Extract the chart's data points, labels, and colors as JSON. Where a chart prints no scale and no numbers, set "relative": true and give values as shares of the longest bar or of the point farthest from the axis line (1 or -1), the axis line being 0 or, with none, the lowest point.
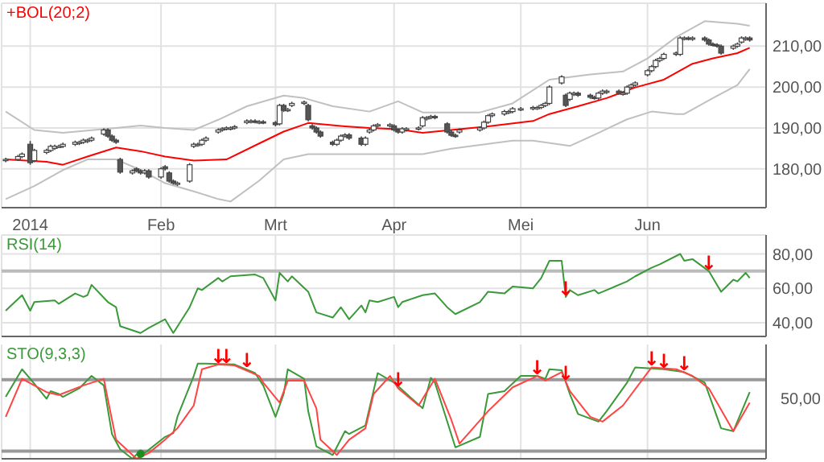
{
  "chart_data": [
    {
      "type": "candlestick",
      "legend": "top left",
      "grid": true,
      "xlim": [
        "2013-12-26",
        "2014-07-01"
      ],
      "xticks": [
        {
          "value": "2014-01-02",
          "label": "2014"
        },
        {
          "value": "2014-02-03",
          "label": "Feb"
        },
        {
          "value": "2014-03-03",
          "label": "Mrt"
        },
        {
          "value": "2014-04-01",
          "label": "Apr"
        },
        {
          "value": "2014-05-02",
          "label": "Mei"
        },
        {
          "value": "2014-06-02",
          "label": "Jun"
        }
      ],
      "ylim": [
        170.5,
        220.5
      ],
      "yticks": [
        {
          "value": 180,
          "label": "180,00"
        },
        {
          "value": 190,
          "label": "190,00"
        },
        {
          "value": 200,
          "label": "200,00"
        },
        {
          "value": 210,
          "label": "210,00"
        }
      ],
      "x": [
        "2013-12-27",
        "2013-12-30",
        "2013-12-31",
        "2014-01-02",
        "2014-01-03",
        "2014-01-06",
        "2014-01-07",
        "2014-01-08",
        "2014-01-09",
        "2014-01-10",
        "2014-01-13",
        "2014-01-14",
        "2014-01-15",
        "2014-01-16",
        "2014-01-17",
        "2014-01-20",
        "2014-01-21",
        "2014-01-22",
        "2014-01-23",
        "2014-01-24",
        "2014-01-27",
        "2014-01-28",
        "2014-01-29",
        "2014-01-30",
        "2014-01-31",
        "2014-02-03",
        "2014-02-04",
        "2014-02-05",
        "2014-02-06",
        "2014-02-07",
        "2014-02-10",
        "2014-02-11",
        "2014-02-12",
        "2014-02-13",
        "2014-02-14",
        "2014-02-17",
        "2014-02-18",
        "2014-02-19",
        "2014-02-20",
        "2014-02-21",
        "2014-02-24",
        "2014-02-25",
        "2014-02-26",
        "2014-02-27",
        "2014-02-28",
        "2014-03-03",
        "2014-03-04",
        "2014-03-05",
        "2014-03-06",
        "2014-03-07",
        "2014-03-10",
        "2014-03-11",
        "2014-03-12",
        "2014-03-13",
        "2014-03-14",
        "2014-03-17",
        "2014-03-18",
        "2014-03-19",
        "2014-03-20",
        "2014-03-21",
        "2014-03-24",
        "2014-03-25",
        "2014-03-26",
        "2014-03-27",
        "2014-03-28",
        "2014-03-31",
        "2014-04-01",
        "2014-04-02",
        "2014-04-03",
        "2014-04-04",
        "2014-04-07",
        "2014-04-08",
        "2014-04-09",
        "2014-04-10",
        "2014-04-11",
        "2014-04-14",
        "2014-04-15",
        "2014-04-16",
        "2014-04-17",
        "2014-04-22",
        "2014-04-23",
        "2014-04-24",
        "2014-04-25",
        "2014-04-28",
        "2014-04-29",
        "2014-04-30",
        "2014-05-02",
        "2014-05-05",
        "2014-05-06",
        "2014-05-07",
        "2014-05-08",
        "2014-05-09",
        "2014-05-12",
        "2014-05-13",
        "2014-05-14",
        "2014-05-15",
        "2014-05-16",
        "2014-05-19",
        "2014-05-20",
        "2014-05-21",
        "2014-05-22",
        "2014-05-23",
        "2014-05-26",
        "2014-05-27",
        "2014-05-28",
        "2014-05-29",
        "2014-05-30",
        "2014-06-02",
        "2014-06-03",
        "2014-06-04",
        "2014-06-05",
        "2014-06-06",
        "2014-06-09",
        "2014-06-10",
        "2014-06-11",
        "2014-06-12",
        "2014-06-13",
        "2014-06-16",
        "2014-06-17",
        "2014-06-18",
        "2014-06-19",
        "2014-06-20",
        "2014-06-23",
        "2014-06-24",
        "2014-06-25",
        "2014-06-26",
        "2014-06-27"
      ],
      "ohlc": [
        [
          182,
          182.7,
          181.6,
          182.3
        ],
        [
          182.3,
          183.4,
          181.9,
          183
        ],
        [
          183,
          184,
          182.6,
          183.6
        ],
        [
          186,
          186.8,
          181,
          181.5
        ],
        [
          182,
          184.9,
          181.6,
          184.5
        ],
        [
          184,
          184.9,
          183.6,
          184.5
        ],
        [
          184.5,
          185.9,
          184.1,
          185.5
        ],
        [
          185,
          185.9,
          184.6,
          185.5
        ],
        [
          185.5,
          185.9,
          185.1,
          185.5
        ],
        [
          185.5,
          186.4,
          185.1,
          186
        ],
        [
          186,
          186.9,
          185.6,
          186.5
        ],
        [
          186.2,
          186.9,
          185.8,
          186.5
        ],
        [
          186.5,
          187.4,
          186.1,
          187
        ],
        [
          186.7,
          187.4,
          186.3,
          187
        ],
        [
          187,
          187.9,
          186.6,
          187.5
        ],
        [
          188.5,
          189.9,
          188.1,
          189.5
        ],
        [
          189.5,
          189.9,
          187.6,
          188
        ],
        [
          188,
          188.4,
          186.6,
          187
        ],
        [
          187,
          187.4,
          186.1,
          186.5
        ],
        [
          182.3,
          182.7,
          178.8,
          179.2
        ],
        [
          179,
          179.9,
          178.6,
          179.5
        ],
        [
          180,
          180.4,
          179.1,
          179.5
        ],
        [
          179.5,
          179.9,
          178.6,
          179
        ],
        [
          179,
          179.9,
          178.6,
          179.5
        ],
        [
          179.5,
          179.9,
          177.6,
          178
        ],
        [
          178,
          180.4,
          177.6,
          180
        ],
        [
          180.5,
          180.9,
          179.6,
          180
        ],
        [
          179,
          179.4,
          176.6,
          177
        ],
        [
          177,
          177.4,
          176.1,
          176.5
        ],
        [
          176.2,
          176.9,
          175.8,
          176.5
        ],
        [
          177,
          181.4,
          176.6,
          181
        ],
        [
          185.5,
          186.4,
          185.1,
          186
        ],
        [
          185.8,
          186.4,
          185.4,
          186
        ],
        [
          186,
          187.4,
          185.6,
          187
        ],
        [
          187,
          187.9,
          186.6,
          187.5
        ],
        [
          189,
          189.9,
          188.6,
          189.5
        ],
        [
          189.5,
          190.2,
          189.1,
          189.8
        ],
        [
          189.8,
          190.4,
          189.4,
          190
        ],
        [
          189.8,
          190.4,
          189.4,
          190
        ],
        [
          190,
          190.7,
          189.6,
          190.3
        ],
        [
          191.3,
          192.1,
          190.9,
          191.7
        ],
        [
          191.5,
          192.1,
          191.1,
          191.7
        ],
        [
          191.7,
          192.1,
          191.1,
          191.5
        ],
        [
          191.3,
          191.9,
          190.9,
          191.5
        ],
        [
          191.5,
          191.9,
          190.9,
          191.3
        ],
        [
          191.3,
          191.7,
          190.4,
          190.8
        ],
        [
          191,
          195.9,
          190.6,
          195.5
        ],
        [
          195.5,
          195.9,
          193.9,
          194.3
        ],
        [
          194.3,
          194.9,
          193.9,
          194.5
        ],
        [
          195.5,
          196.4,
          195.1,
          196
        ],
        [
          196,
          196.7,
          195.6,
          196.3
        ],
        [
          195.5,
          195.9,
          191.6,
          192
        ],
        [
          190.5,
          190.9,
          189.6,
          190
        ],
        [
          190,
          190.4,
          188.6,
          189
        ],
        [
          189,
          189.4,
          187.6,
          188
        ],
        [
          186.5,
          186.9,
          185.6,
          186
        ],
        [
          186,
          187.4,
          185.6,
          187
        ],
        [
          187,
          188.4,
          186.6,
          188
        ],
        [
          188,
          188.7,
          187.6,
          188.3
        ],
        [
          188.3,
          188.7,
          187.1,
          187.5
        ],
        [
          187.5,
          187.9,
          185.6,
          186
        ],
        [
          186,
          187.9,
          185.6,
          187.5
        ],
        [
          189,
          189.9,
          188.6,
          189.5
        ],
        [
          189.5,
          190.9,
          189.1,
          190.5
        ],
        [
          190.5,
          191.2,
          190.1,
          190.8
        ],
        [
          190.5,
          191.2,
          190.1,
          190.8
        ],
        [
          190.5,
          190.9,
          189.1,
          189.5
        ],
        [
          189.5,
          189.9,
          188.6,
          189
        ],
        [
          189,
          190.2,
          188.6,
          189.8
        ],
        [
          189.5,
          190.2,
          189.1,
          189.8
        ],
        [
          189.8,
          190.4,
          189.4,
          190
        ],
        [
          190.5,
          192.9,
          190.1,
          192.5
        ],
        [
          192.2,
          192.9,
          191.8,
          192.5
        ],
        [
          192.5,
          193.2,
          192.1,
          192.8
        ],
        [
          192.8,
          193.2,
          192.1,
          192.5
        ],
        [
          191,
          191.4,
          188.6,
          189
        ],
        [
          189,
          189.4,
          187.8,
          188.2
        ],
        [
          188.2,
          188.6,
          187.6,
          188
        ],
        [
          189,
          189.9,
          188.6,
          189.5
        ],
        [
          189.5,
          190.4,
          189.1,
          190
        ],
        [
          190,
          191.8,
          189.6,
          191.4
        ],
        [
          191.4,
          193.4,
          191,
          193
        ],
        [
          193,
          193.8,
          192.6,
          193.4
        ],
        [
          193.4,
          194.4,
          193,
          194
        ],
        [
          193.8,
          194.4,
          193.4,
          194
        ],
        [
          194,
          195.1,
          193.6,
          194.7
        ],
        [
          194.5,
          195.1,
          194.1,
          194.7
        ],
        [
          194.7,
          195.4,
          194.3,
          195
        ],
        [
          194.8,
          195.4,
          194.4,
          195
        ],
        [
          195,
          195.9,
          194.6,
          195.5
        ],
        [
          195.5,
          196.4,
          195.1,
          196
        ],
        [
          196,
          200.4,
          195.6,
          200
        ],
        [
          201,
          202.9,
          200.6,
          202.5
        ],
        [
          198,
          198.4,
          195.1,
          195.5
        ],
        [
          197,
          198.9,
          196.6,
          198.5
        ],
        [
          198.2,
          198.9,
          197.8,
          198.5
        ],
        [
          198.5,
          198.9,
          197.6,
          198
        ],
        [
          198,
          198.4,
          197.1,
          197.5
        ],
        [
          197.5,
          197.9,
          196.9,
          197.3
        ],
        [
          197.3,
          198.9,
          196.9,
          198.5
        ],
        [
          198.5,
          199.4,
          198.1,
          199
        ],
        [
          198.7,
          199.4,
          198.3,
          199
        ],
        [
          199,
          199.4,
          198.1,
          198.5
        ],
        [
          198.3,
          198.9,
          197.9,
          198.5
        ],
        [
          198.5,
          200.4,
          198.1,
          200
        ],
        [
          200,
          200.9,
          199.6,
          200.5
        ],
        [
          200.5,
          201.4,
          200.1,
          201
        ],
        [
          203,
          204.4,
          202.6,
          204
        ],
        [
          204,
          205.4,
          203.6,
          205
        ],
        [
          205,
          206.9,
          204.6,
          206.5
        ],
        [
          206.5,
          207.4,
          206.1,
          207
        ],
        [
          207,
          208.4,
          206.6,
          208
        ],
        [
          208,
          208.7,
          207.6,
          208.3
        ],
        [
          208,
          212.4,
          207.6,
          212
        ],
        [
          211.8,
          212.4,
          211.4,
          212
        ],
        [
          212,
          212.4,
          211.4,
          211.8
        ],
        [
          211.7,
          212.4,
          211.3,
          212
        ],
        [
          212,
          212.4,
          211.1,
          211.5
        ],
        [
          211.5,
          211.9,
          210.1,
          210.5
        ],
        [
          210.5,
          210.9,
          209.9,
          210.3
        ],
        [
          210.3,
          210.7,
          209.6,
          210
        ],
        [
          210,
          210.4,
          207.9,
          208.3
        ],
        [
          209.5,
          210.4,
          209.1,
          210
        ],
        [
          210,
          210.9,
          209.6,
          210.5
        ],
        [
          211,
          212.4,
          210.6,
          212
        ],
        [
          211.7,
          212.4,
          211.3,
          212
        ],
        [
          212,
          212.4,
          211.1,
          211.5
        ]
      ],
      "series": [
        {
          "type": "line",
          "name": "+BOL(20;2)",
          "color": "#ff0000",
          "x": [
            "2013-12-27",
            "2014-01-06",
            "2014-01-10",
            "2014-01-16",
            "2014-01-23",
            "2014-01-29",
            "2014-02-04",
            "2014-02-11",
            "2014-02-19",
            "2014-02-27",
            "2014-03-05",
            "2014-03-11",
            "2014-03-20",
            "2014-03-26",
            "2014-04-02",
            "2014-04-08",
            "2014-04-15",
            "2014-04-24",
            "2014-05-05",
            "2014-05-09",
            "2014-05-16",
            "2014-05-23",
            "2014-05-30",
            "2014-06-06",
            "2014-06-13",
            "2014-06-18",
            "2014-06-24",
            "2014-06-27"
          ],
          "values": [
            182.3,
            181.7,
            181,
            183,
            185.2,
            184.3,
            183,
            182,
            182.3,
            186.2,
            189.1,
            191.2,
            190.4,
            190,
            189.7,
            188.8,
            189.5,
            190.4,
            191.7,
            193.4,
            195.3,
            197.3,
            199.9,
            201.8,
            205.7,
            207,
            208.3,
            209.6
          ]
        },
        {
          "type": "line",
          "color": "#c0c0c0",
          "x": [
            "2013-12-27",
            "2014-01-03",
            "2014-01-10",
            "2014-01-23",
            "2014-01-29",
            "2014-02-04",
            "2014-02-11",
            "2014-02-17",
            "2014-02-24",
            "2014-03-05",
            "2014-03-10",
            "2014-03-17",
            "2014-03-26",
            "2014-04-02",
            "2014-04-08",
            "2014-04-22",
            "2014-04-30",
            "2014-05-09",
            "2014-05-19",
            "2014-05-27",
            "2014-06-02",
            "2014-06-09",
            "2014-06-16",
            "2014-06-24",
            "2014-06-27"
          ],
          "values": [
            194,
            189.5,
            188.8,
            190,
            190.6,
            190,
            189.5,
            192,
            195.3,
            197.9,
            197.3,
            195.3,
            194,
            196.5,
            193.8,
            193.8,
            196,
            201.8,
            203.1,
            203.8,
            207,
            212.2,
            216.1,
            215.5,
            215
          ]
        },
        {
          "type": "line",
          "color": "#c0c0c0",
          "x": [
            "2013-12-27",
            "2014-01-03",
            "2014-01-10",
            "2014-01-16",
            "2014-01-23",
            "2014-01-29",
            "2014-02-04",
            "2014-02-11",
            "2014-02-17",
            "2014-02-20",
            "2014-02-27",
            "2014-03-05",
            "2014-03-11",
            "2014-03-20",
            "2014-04-02",
            "2014-04-08",
            "2014-04-15",
            "2014-04-30",
            "2014-05-05",
            "2014-05-14",
            "2014-05-21",
            "2014-05-28",
            "2014-06-03",
            "2014-06-09",
            "2014-06-11",
            "2014-06-18",
            "2014-06-24",
            "2014-06-27"
          ],
          "values": [
            172.6,
            175.8,
            179.7,
            182.3,
            182.3,
            179.7,
            176.5,
            174.5,
            172.6,
            172,
            177.1,
            182.3,
            183.6,
            183.6,
            183.6,
            183.6,
            184.9,
            186.9,
            186.9,
            185.6,
            188.8,
            192.1,
            194,
            193.4,
            193.4,
            197.3,
            200.5,
            204.4
          ]
        }
      ]
    },
    {
      "type": "line",
      "legend": "top left",
      "grid": true,
      "tick_labels": "y",
      "xlim": [
        "2013-12-26",
        "2014-07-01"
      ],
      "xticks": [
        {
          "value": "2014-01-02",
          "label": null
        },
        {
          "value": "2014-02-03",
          "label": null
        },
        {
          "value": "2014-03-03",
          "label": null
        },
        {
          "value": "2014-04-01",
          "label": null
        },
        {
          "value": "2014-05-02",
          "label": null
        },
        {
          "value": "2014-06-02",
          "label": null
        }
      ],
      "ylim": [
        32,
        91
      ],
      "yticks": [
        {
          "value": 40,
          "label": "40,00"
        },
        {
          "value": 60,
          "label": "60,00"
        },
        {
          "value": 80,
          "label": "80,00"
        }
      ],
      "ref_lines": [
        {
          "axis": "y",
          "value": 70,
          "color": "#bbbbbb"
        }
      ],
      "annotations": [
        {
          "text": "↓",
          "x": "2014-05-13",
          "y": 55
        },
        {
          "text": "↓",
          "x": "2014-06-17",
          "y": 70
        }
      ],
      "series": [
        {
          "name": "RSI(14)",
          "color": "#3a9a3a",
          "x": [
            "2013-12-27",
            "2013-12-31",
            "2014-01-02",
            "2014-01-03",
            "2014-01-08",
            "2014-01-09",
            "2014-01-13",
            "2014-01-15",
            "2014-01-16",
            "2014-01-17",
            "2014-01-21",
            "2014-01-23",
            "2014-01-24",
            "2014-01-29",
            "2014-01-31",
            "2014-02-04",
            "2014-02-06",
            "2014-02-10",
            "2014-02-12",
            "2014-02-13",
            "2014-02-17",
            "2014-02-18",
            "2014-02-20",
            "2014-02-26",
            "2014-02-28",
            "2014-03-03",
            "2014-03-04",
            "2014-03-06",
            "2014-03-07",
            "2014-03-11",
            "2014-03-13",
            "2014-03-17",
            "2014-03-19",
            "2014-03-21",
            "2014-03-24",
            "2014-03-25",
            "2014-03-26",
            "2014-03-28",
            "2014-04-01",
            "2014-04-02",
            "2014-04-03",
            "2014-04-08",
            "2014-04-11",
            "2014-04-14",
            "2014-04-16",
            "2014-04-22",
            "2014-04-24",
            "2014-04-28",
            "2014-04-30",
            "2014-05-05",
            "2014-05-07",
            "2014-05-09",
            "2014-05-12",
            "2014-05-13",
            "2014-05-14",
            "2014-05-16",
            "2014-05-20",
            "2014-05-21",
            "2014-05-23",
            "2014-05-28",
            "2014-05-30",
            "2014-06-03",
            "2014-06-05",
            "2014-06-10",
            "2014-06-11",
            "2014-06-13",
            "2014-06-17",
            "2014-06-20",
            "2014-06-23",
            "2014-06-24",
            "2014-06-26",
            "2014-06-27"
          ],
          "values": [
            47,
            56,
            47,
            52,
            53,
            51,
            57,
            55,
            56,
            62,
            52,
            49,
            38,
            34,
            37,
            42,
            34,
            49,
            60,
            59,
            66,
            64,
            67,
            68,
            66,
            53,
            69,
            64,
            67,
            58,
            46,
            43,
            49,
            42,
            50,
            46,
            53,
            52,
            55,
            49,
            52,
            56,
            57,
            49,
            45,
            52,
            58,
            57,
            61,
            60,
            66,
            76,
            76,
            55,
            59,
            56,
            59,
            57,
            59,
            64,
            67,
            72,
            74,
            80,
            76,
            77,
            70,
            58,
            65,
            64,
            69,
            66
          ]
        }
      ]
    },
    {
      "type": "line",
      "legend": "top left",
      "grid": "x",
      "tick_labels": "y",
      "relative": true,
      "xlim": [
        "2013-12-26",
        "2014-07-01"
      ],
      "xticks": [
        {
          "value": "2014-01-02",
          "label": null
        },
        {
          "value": "2014-02-03",
          "label": null
        },
        {
          "value": "2014-03-03",
          "label": null
        },
        {
          "value": "2014-04-01",
          "label": null
        },
        {
          "value": "2014-05-02",
          "label": null
        },
        {
          "value": "2014-06-02",
          "label": null
        }
      ],
      "ref_lines": [
        {
          "axis": "y",
          "value": 0.83,
          "color": "#999999"
        },
        {
          "axis": "y",
          "value": 0.08,
          "color": "#999999"
        }
      ],
      "annotations": [
        "50,00",
        {
          "text": "↓",
          "x": "2014-02-17",
          "y": 0.99
        },
        {
          "text": "↓",
          "x": "2014-02-19",
          "y": 0.99
        },
        {
          "text": "↓",
          "x": "2014-02-24",
          "y": 0.95
        },
        {
          "text": "↓",
          "x": "2014-04-02",
          "y": 0.74
        },
        {
          "text": "↓",
          "x": "2014-05-06",
          "y": 0.87
        },
        {
          "text": "↓",
          "x": "2014-05-13",
          "y": 0.81
        },
        {
          "text": "↓",
          "x": "2014-06-03",
          "y": 0.96
        },
        {
          "text": "↓",
          "x": "2014-06-06",
          "y": 0.94
        },
        {
          "text": "↓",
          "x": "2014-06-11",
          "y": 0.91
        }
      ],
      "series": [
        {
          "name": "STO(9,3,3)",
          "color": "#3a9a3a",
          "x": [
            "2013-12-27",
            "2013-12-31",
            "2014-01-02",
            "2014-01-06",
            "2014-01-07",
            "2014-01-09",
            "2014-01-10",
            "2014-01-14",
            "2014-01-17",
            "2014-01-20",
            "2014-01-22",
            "2014-01-24",
            "2014-01-27",
            "2014-01-29",
            "2014-01-30",
            "2014-02-04",
            "2014-02-06",
            "2014-02-07",
            "2014-02-11",
            "2014-02-12",
            "2014-02-14",
            "2014-02-21",
            "2014-02-26",
            "2014-02-28",
            "2014-03-03",
            "2014-03-05",
            "2014-03-06",
            "2014-03-10",
            "2014-03-11",
            "2014-03-13",
            "2014-03-17",
            "2014-03-20",
            "2014-03-21",
            "2014-03-25",
            "2014-03-28",
            "2014-04-01",
            "2014-04-08",
            "2014-04-10",
            "2014-04-11",
            "2014-04-16",
            "2014-04-22",
            "2014-04-24",
            "2014-04-28",
            "2014-05-02",
            "2014-05-06",
            "2014-05-08",
            "2014-05-09",
            "2014-05-12",
            "2014-05-14",
            "2014-05-16",
            "2014-05-21",
            "2014-05-23",
            "2014-05-28",
            "2014-05-30",
            "2014-06-06",
            "2014-06-11",
            "2014-06-16",
            "2014-06-20",
            "2014-06-23",
            "2014-06-27"
          ],
          "values": [
            0.65,
            0.94,
            0.84,
            0.63,
            0.71,
            0.68,
            0.65,
            0.74,
            0.87,
            0.77,
            0.26,
            0.1,
            0,
            0.09,
            0.06,
            0.23,
            0.27,
            0.44,
            0.87,
            1,
            1,
            0.99,
            0.9,
            0.77,
            0.44,
            0.68,
            0.94,
            0.84,
            0.5,
            0.13,
            0.04,
            0.29,
            0.26,
            0.35,
            0.9,
            0.8,
            0.53,
            0.85,
            0.8,
            0.12,
            0.23,
            0.68,
            0.71,
            0.87,
            0.87,
            0.84,
            0.94,
            0.93,
            0.68,
            0.47,
            0.39,
            0.5,
            0.8,
            0.96,
            0.94,
            0.91,
            0.8,
            0.32,
            0.29,
            0.7
          ]
        },
        {
          "color": "#ff4444",
          "x": [
            "2013-12-27",
            "2013-12-31",
            "2014-01-06",
            "2014-01-09",
            "2014-01-15",
            "2014-01-20",
            "2014-01-21",
            "2014-01-23",
            "2014-01-28",
            "2014-01-31",
            "2014-02-04",
            "2014-02-07",
            "2014-02-11",
            "2014-02-13",
            "2014-02-17",
            "2014-02-21",
            "2014-02-27",
            "2014-02-28",
            "2014-03-04",
            "2014-03-06",
            "2014-03-10",
            "2014-03-13",
            "2014-03-14",
            "2014-03-18",
            "2014-03-21",
            "2014-03-25",
            "2014-03-27",
            "2014-03-31",
            "2014-04-02",
            "2014-04-07",
            "2014-04-11",
            "2014-04-15",
            "2014-04-17",
            "2014-04-24",
            "2014-04-30",
            "2014-05-06",
            "2014-05-08",
            "2014-05-12",
            "2014-05-14",
            "2014-05-19",
            "2014-05-22",
            "2014-05-27",
            "2014-06-03",
            "2014-06-09",
            "2014-06-13",
            "2014-06-17",
            "2014-06-23",
            "2014-06-27"
          ],
          "values": [
            0.44,
            0.84,
            0.7,
            0.67,
            0.77,
            0.84,
            0.62,
            0.2,
            0,
            0.06,
            0.2,
            0.32,
            0.56,
            0.94,
            0.99,
            0.98,
            0.87,
            0.8,
            0.59,
            0.82,
            0.82,
            0.53,
            0.2,
            0.04,
            0.2,
            0.32,
            0.68,
            0.87,
            0.74,
            0.56,
            0.84,
            0.41,
            0.16,
            0.5,
            0.75,
            0.87,
            0.82,
            0.91,
            0.71,
            0.44,
            0.39,
            0.56,
            0.96,
            0.94,
            0.87,
            0.74,
            0.29,
            0.59
          ]
        },
        {
          "type": "scatter",
          "marker": "circle",
          "color": "#1e8c1e",
          "x": [
            "2014-01-29"
          ],
          "values": [
            0.05
          ]
        }
      ]
    }
  ]
}
